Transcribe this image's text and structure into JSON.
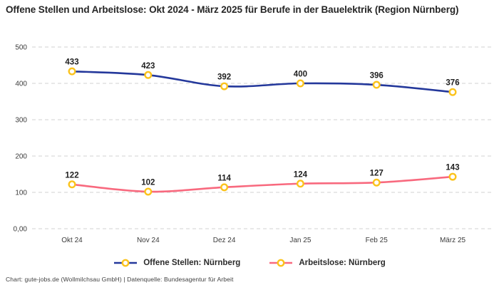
{
  "title": "Offene Stellen und Arbeitslose: Okt 2024 - März 2025 für Berufe in der Bauelektrik (Region Nürnberg)",
  "footer": "Chart: gute-jobs.de (Wollmilchsau GmbH) | Datenquelle: Bundesagentur für Arbeit",
  "colors": {
    "open_positions": "#24389b",
    "unemployed": "#f8697e",
    "marker_ring": "#fbc31c",
    "marker_fill": "#ffffff",
    "grid": "#d0d0d0",
    "axis_text": "#3c3c3c",
    "data_label_text": "#1f1f1f"
  },
  "chart_data": {
    "type": "line",
    "categories": [
      "Okt 24",
      "Nov 24",
      "Dez 24",
      "Jan 25",
      "Feb 25",
      "März 25"
    ],
    "series": [
      {
        "name": "Offene Stellen: Nürnberg",
        "values": [
          433,
          423,
          392,
          400,
          396,
          376
        ],
        "color_key": "open_positions"
      },
      {
        "name": "Arbeitslose: Nürnberg",
        "values": [
          122,
          102,
          114,
          124,
          127,
          143
        ],
        "color_key": "unemployed"
      }
    ],
    "ylim": [
      0,
      500
    ],
    "yticks": [
      {
        "value": 0,
        "label": "0,00"
      },
      {
        "value": 100,
        "label": "100"
      },
      {
        "value": 200,
        "label": "200"
      },
      {
        "value": 300,
        "label": "300"
      },
      {
        "value": 400,
        "label": "400"
      },
      {
        "value": 500,
        "label": "500"
      }
    ],
    "grid": "horizontal-dashed",
    "legend_position": "bottom",
    "data_labels": true
  }
}
